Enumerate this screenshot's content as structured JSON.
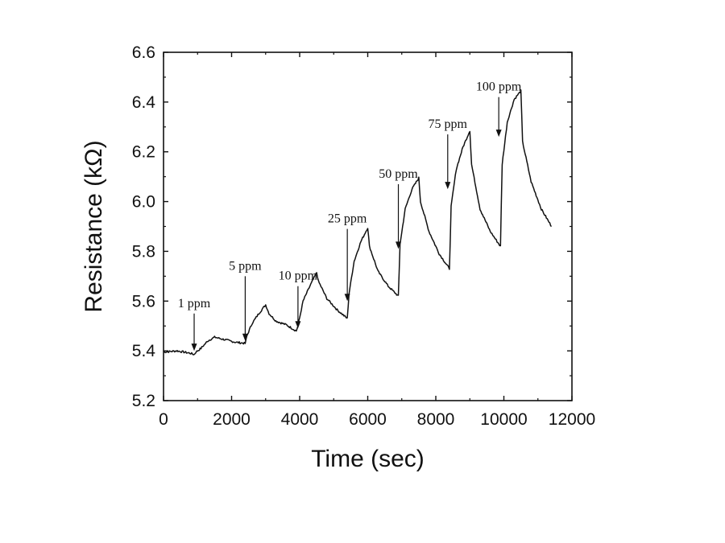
{
  "chart_data": {
    "type": "line",
    "title": "",
    "xlabel": "Time (sec)",
    "ylabel": "Resistance (kΩ)",
    "xlim": [
      0,
      12000
    ],
    "ylim": [
      5.2,
      6.6
    ],
    "x_ticks": [
      0,
      2000,
      4000,
      6000,
      8000,
      10000,
      12000
    ],
    "y_ticks": [
      5.2,
      5.4,
      5.6,
      5.8,
      6.0,
      6.2,
      6.4,
      6.6
    ],
    "x_tick_labels": [
      "0",
      "2000",
      "4000",
      "6000",
      "8000",
      "10000",
      "12000"
    ],
    "y_tick_labels": [
      "5.2",
      "5.4",
      "5.6",
      "5.8",
      "6.0",
      "6.2",
      "6.4",
      "6.6"
    ],
    "grid": false,
    "legend": "none",
    "series": [
      {
        "x": [
          0,
          400,
          800,
          900,
          950,
          1100,
          1300,
          1500,
          1800,
          2100,
          2400,
          2450,
          2600,
          2800,
          3000,
          3100,
          3300,
          3600,
          3900,
          3950,
          4100,
          4300,
          4500,
          4550,
          4800,
          5100,
          5400,
          5450,
          5600,
          5800,
          6000,
          6050,
          6300,
          6600,
          6900,
          6950,
          7100,
          7300,
          7500,
          7550,
          7800,
          8100,
          8400,
          8450,
          8600,
          8800,
          9000,
          9050,
          9300,
          9600,
          9900,
          9950,
          10100,
          10300,
          10500,
          10550,
          10800,
          11100,
          11400
        ],
        "y": [
          5.395,
          5.4,
          5.39,
          5.385,
          5.395,
          5.41,
          5.44,
          5.455,
          5.445,
          5.435,
          5.43,
          5.46,
          5.51,
          5.55,
          5.585,
          5.55,
          5.52,
          5.505,
          5.48,
          5.5,
          5.6,
          5.66,
          5.715,
          5.68,
          5.61,
          5.565,
          5.53,
          5.63,
          5.76,
          5.84,
          5.895,
          5.82,
          5.72,
          5.66,
          5.62,
          5.83,
          5.97,
          6.05,
          6.095,
          6.0,
          5.88,
          5.79,
          5.73,
          5.98,
          6.13,
          6.22,
          6.285,
          6.15,
          5.97,
          5.88,
          5.82,
          6.15,
          6.32,
          6.41,
          6.445,
          6.24,
          6.08,
          5.97,
          5.9
        ]
      }
    ],
    "annotations": [
      {
        "text": "1 ppm",
        "x": 900,
        "y_arrow_top": 5.55,
        "y_arrow_tip": 5.4
      },
      {
        "text": "5 ppm",
        "x": 2400,
        "y_arrow_top": 5.7,
        "y_arrow_tip": 5.44
      },
      {
        "text": "10 ppm",
        "x": 3950,
        "y_arrow_top": 5.66,
        "y_arrow_tip": 5.49
      },
      {
        "text": "25 ppm",
        "x": 5400,
        "y_arrow_top": 5.89,
        "y_arrow_tip": 5.6
      },
      {
        "text": "50 ppm",
        "x": 6900,
        "y_arrow_top": 6.07,
        "y_arrow_tip": 5.81
      },
      {
        "text": "75 ppm",
        "x": 8350,
        "y_arrow_top": 6.27,
        "y_arrow_tip": 6.05
      },
      {
        "text": "100 ppm",
        "x": 9850,
        "y_arrow_top": 6.42,
        "y_arrow_tip": 6.26
      }
    ]
  }
}
